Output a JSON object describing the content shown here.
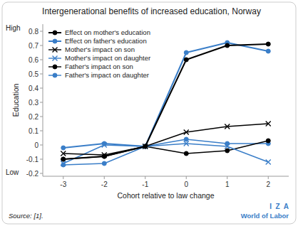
{
  "chart_data": {
    "type": "line",
    "title": "Intergenerational benefits of increased education, Norway",
    "x_label": "Cohort relative to law change",
    "y_label": "Education",
    "x": [
      -3,
      -2,
      -1,
      0,
      1,
      2
    ],
    "series": [
      {
        "name": "Effect on mother's education",
        "color": "#000000",
        "marker": "circle",
        "values": [
          -0.1,
          -0.08,
          -0.01,
          0.6,
          0.7,
          0.71
        ]
      },
      {
        "name": "Effect on father's education",
        "color": "#3a7ec8",
        "marker": "circle",
        "values": [
          -0.02,
          0.01,
          -0.01,
          0.65,
          0.72,
          0.66
        ]
      },
      {
        "name": "Mother's impact on son",
        "color": "#000000",
        "marker": "x",
        "values": [
          -0.06,
          -0.07,
          -0.01,
          0.09,
          0.13,
          0.15
        ]
      },
      {
        "name": "Mother's impact on daughter",
        "color": "#3a7ec8",
        "marker": "x",
        "values": [
          -0.13,
          0.0,
          -0.01,
          0.01,
          -0.01,
          -0.12
        ]
      },
      {
        "name": "Father's impact on son",
        "color": "#000000",
        "marker": "circle",
        "values": [
          -0.1,
          -0.08,
          -0.01,
          -0.06,
          -0.04,
          0.03
        ]
      },
      {
        "name": "Father's impact on daughter",
        "color": "#3a7ec8",
        "marker": "circle",
        "values": [
          -0.14,
          -0.13,
          -0.01,
          0.04,
          0.01,
          0.01
        ]
      }
    ],
    "xlim": [
      -3.5,
      2.5
    ],
    "xticks": [
      -3,
      -2,
      -1,
      0,
      1,
      2
    ],
    "ylim": [
      -0.22,
      0.85
    ],
    "yticks": [
      -0.2,
      -0.1,
      0,
      0.1,
      0.2,
      0.3,
      0.4,
      0.5,
      0.6,
      0.7,
      0.8
    ],
    "grid": false,
    "legend": "upper left",
    "annotations": [
      {
        "text": "High"
      },
      {
        "text": "Low"
      },
      {
        "text": "Source: [1]."
      },
      {
        "text": "I  Z  A",
        "color": "#3a7ec8"
      },
      {
        "text": "World of Labor",
        "color": "#3a7ec8"
      }
    ]
  }
}
